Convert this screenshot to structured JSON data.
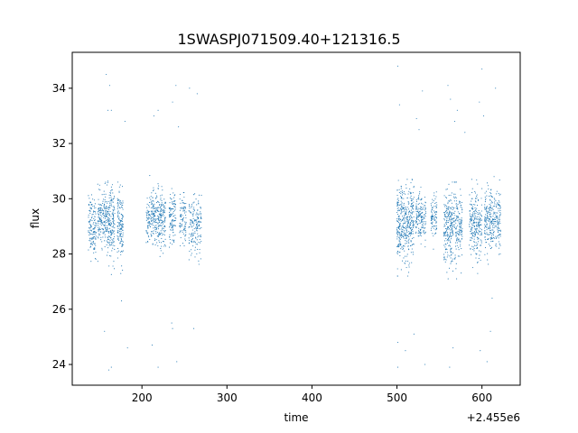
{
  "chart_data": {
    "type": "scatter",
    "title": "1SWASPJ071509.40+121316.5",
    "xlabel": "time",
    "ylabel": "flux",
    "x_offset_label": "+2.455e6",
    "xlim": [
      118,
      645
    ],
    "ylim": [
      23.25,
      35.3
    ],
    "xticks": [
      {
        "value": 200,
        "label": "200"
      },
      {
        "value": 300,
        "label": "300"
      },
      {
        "value": 400,
        "label": "400"
      },
      {
        "value": 500,
        "label": "500"
      },
      {
        "value": 600,
        "label": "600"
      }
    ],
    "yticks": [
      {
        "value": 24,
        "label": "24"
      },
      {
        "value": 26,
        "label": "26"
      },
      {
        "value": 28,
        "label": "28"
      },
      {
        "value": 30,
        "label": "30"
      },
      {
        "value": 32,
        "label": "32"
      },
      {
        "value": 34,
        "label": "34"
      }
    ],
    "grid": false,
    "marker_color": "#1f77b4",
    "observing_clusters": [
      {
        "x": [
          137,
          146
        ],
        "center": 29.0,
        "spread": 0.7,
        "count": 140
      },
      {
        "x": [
          148,
          158
        ],
        "center": 29.3,
        "spread": 0.6,
        "count": 160
      },
      {
        "x": [
          158,
          168
        ],
        "center": 29.1,
        "spread": 0.85,
        "count": 200
      },
      {
        "x": [
          171,
          178
        ],
        "center": 29.0,
        "spread": 0.8,
        "count": 150
      },
      {
        "x": [
          205,
          228
        ],
        "center": 29.3,
        "spread": 0.65,
        "count": 340
      },
      {
        "x": [
          232,
          240
        ],
        "center": 29.2,
        "spread": 0.7,
        "count": 110
      },
      {
        "x": [
          244,
          252
        ],
        "center": 29.2,
        "spread": 0.6,
        "count": 90
      },
      {
        "x": [
          255,
          270
        ],
        "center": 29.0,
        "spread": 0.7,
        "count": 170
      },
      {
        "x": [
          500,
          520
        ],
        "center": 29.1,
        "spread": 0.9,
        "count": 420
      },
      {
        "x": [
          522,
          534
        ],
        "center": 29.3,
        "spread": 0.6,
        "count": 160
      },
      {
        "x": [
          540,
          547
        ],
        "center": 29.3,
        "spread": 0.5,
        "count": 90
      },
      {
        "x": [
          555,
          577
        ],
        "center": 29.0,
        "spread": 0.85,
        "count": 380
      },
      {
        "x": [
          585,
          600
        ],
        "center": 29.1,
        "spread": 0.8,
        "count": 240
      },
      {
        "x": [
          603,
          622
        ],
        "center": 29.2,
        "spread": 0.75,
        "count": 300
      }
    ],
    "outliers": [
      {
        "x": 158,
        "y": 34.5
      },
      {
        "x": 160,
        "y": 33.2
      },
      {
        "x": 162,
        "y": 34.1
      },
      {
        "x": 164,
        "y": 33.2
      },
      {
        "x": 161,
        "y": 23.8
      },
      {
        "x": 164,
        "y": 23.9
      },
      {
        "x": 156,
        "y": 25.2
      },
      {
        "x": 180,
        "y": 32.8
      },
      {
        "x": 183,
        "y": 24.6
      },
      {
        "x": 176,
        "y": 26.3
      },
      {
        "x": 214,
        "y": 33.0
      },
      {
        "x": 219,
        "y": 33.2
      },
      {
        "x": 212,
        "y": 24.7
      },
      {
        "x": 219,
        "y": 23.9
      },
      {
        "x": 236,
        "y": 33.5
      },
      {
        "x": 240,
        "y": 34.1
      },
      {
        "x": 243,
        "y": 32.6
      },
      {
        "x": 235,
        "y": 25.5
      },
      {
        "x": 241,
        "y": 24.1
      },
      {
        "x": 236,
        "y": 25.3
      },
      {
        "x": 256,
        "y": 34.0
      },
      {
        "x": 265,
        "y": 33.8
      },
      {
        "x": 261,
        "y": 25.3
      },
      {
        "x": 501,
        "y": 34.8
      },
      {
        "x": 503,
        "y": 33.4
      },
      {
        "x": 501,
        "y": 24.8
      },
      {
        "x": 501,
        "y": 23.9
      },
      {
        "x": 510,
        "y": 24.5
      },
      {
        "x": 520,
        "y": 25.1
      },
      {
        "x": 523,
        "y": 32.9
      },
      {
        "x": 526,
        "y": 32.5
      },
      {
        "x": 530,
        "y": 33.9
      },
      {
        "x": 533,
        "y": 24.0
      },
      {
        "x": 560,
        "y": 34.1
      },
      {
        "x": 563,
        "y": 33.6
      },
      {
        "x": 568,
        "y": 32.8
      },
      {
        "x": 562,
        "y": 23.9
      },
      {
        "x": 566,
        "y": 24.6
      },
      {
        "x": 571,
        "y": 33.2
      },
      {
        "x": 597,
        "y": 33.5
      },
      {
        "x": 600,
        "y": 34.7
      },
      {
        "x": 602,
        "y": 33.0
      },
      {
        "x": 598,
        "y": 24.5
      },
      {
        "x": 606,
        "y": 24.1
      },
      {
        "x": 610,
        "y": 25.2
      },
      {
        "x": 616,
        "y": 34.0
      },
      {
        "x": 612,
        "y": 26.4
      },
      {
        "x": 580,
        "y": 32.4
      }
    ]
  }
}
